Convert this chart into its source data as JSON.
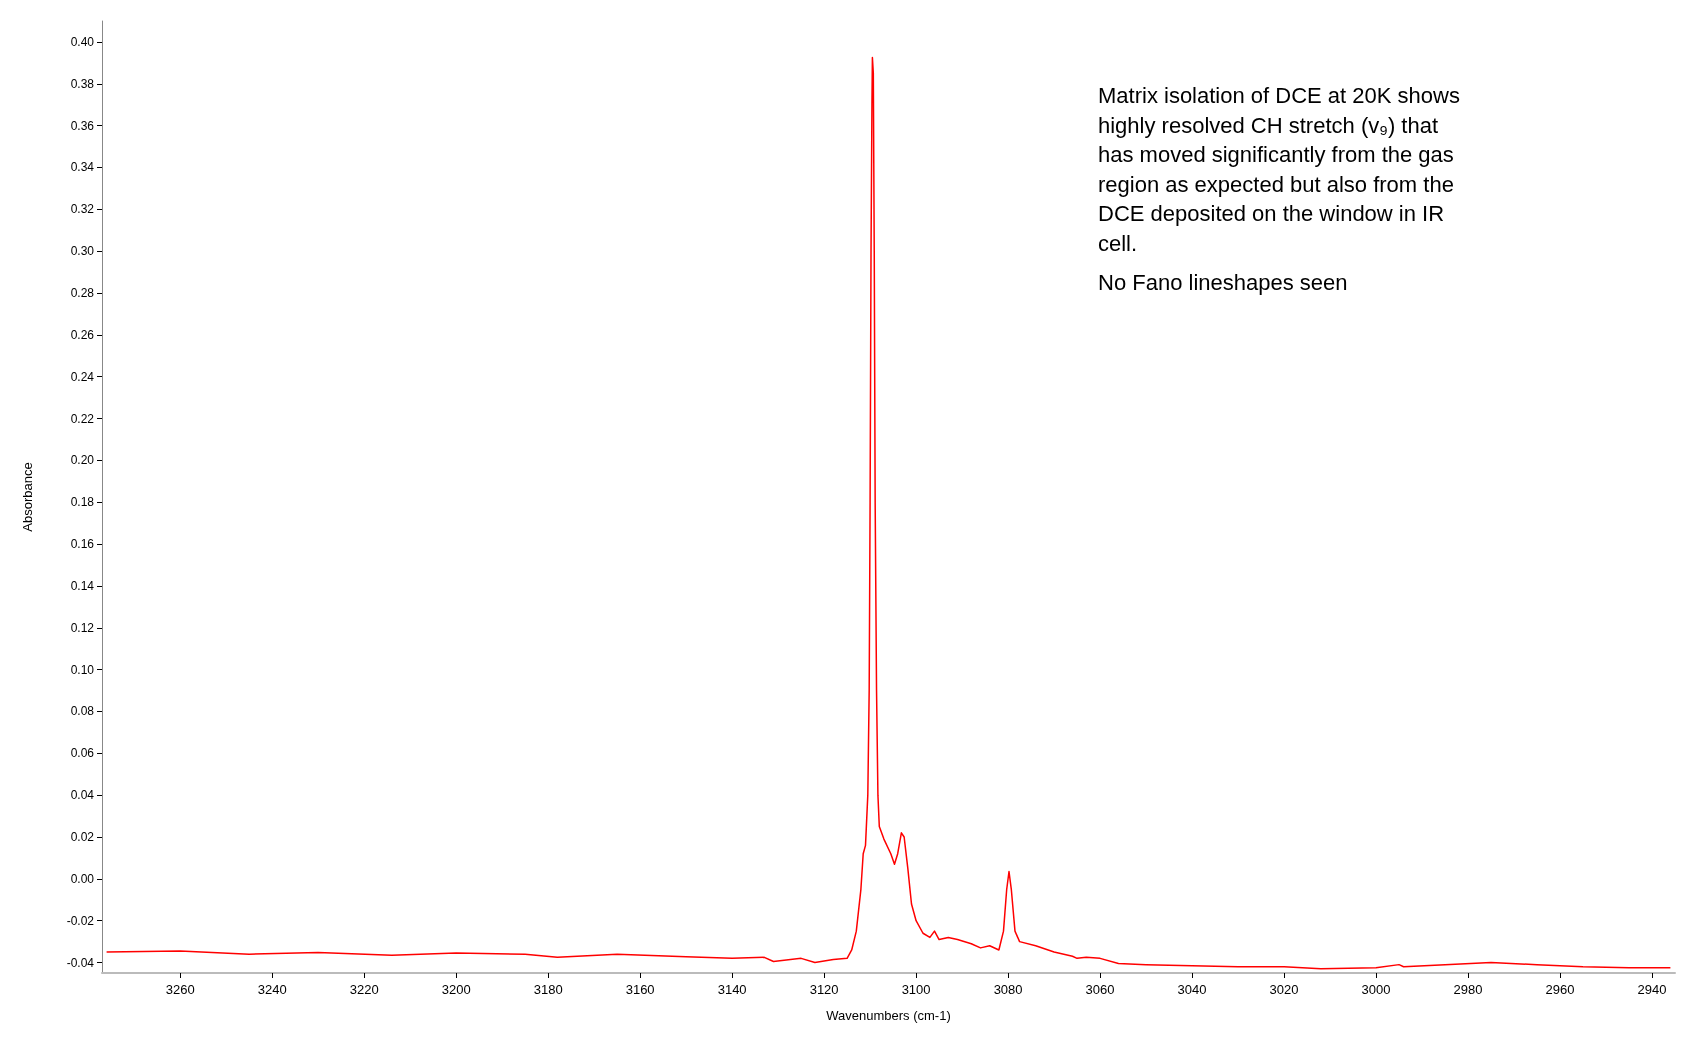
{
  "chart_data": {
    "type": "line",
    "xlabel": "Wavenumbers (cm-1)",
    "ylabel": "Absorbance",
    "annotations": [
      "Matrix isolation of DCE at 20K shows highly resolved CH stretch (v₉) that has moved significantly from the gas region as expected but also from the DCE deposited on the window in IR cell.",
      "No Fano lineshapes seen"
    ],
    "xlim": [
      3277,
      2935
    ],
    "xticks": [
      3260,
      3240,
      3220,
      3200,
      3180,
      3160,
      3140,
      3120,
      3100,
      3080,
      3060,
      3040,
      3020,
      3000,
      2980,
      2960,
      2940
    ],
    "ylim": [
      -0.045,
      0.41
    ],
    "yticks": [
      {
        "value": -0.04,
        "label": "-0.04"
      },
      {
        "value": -0.02,
        "label": "-0.02"
      },
      {
        "value": 0,
        "label": "0.00"
      },
      {
        "value": 0.02,
        "label": "0.02"
      },
      {
        "value": 0.04,
        "label": "0.04"
      },
      {
        "value": 0.06,
        "label": "0.06"
      },
      {
        "value": 0.08,
        "label": "0.08"
      },
      {
        "value": 0.1,
        "label": "0.10"
      },
      {
        "value": 0.12,
        "label": "0.12"
      },
      {
        "value": 0.14,
        "label": "0.14"
      },
      {
        "value": 0.16,
        "label": "0.16"
      },
      {
        "value": 0.18,
        "label": "0.18"
      },
      {
        "value": 0.2,
        "label": "0.20"
      },
      {
        "value": 0.22,
        "label": "0.22"
      },
      {
        "value": 0.24,
        "label": "0.24"
      },
      {
        "value": 0.26,
        "label": "0.26"
      },
      {
        "value": 0.28,
        "label": "0.28"
      },
      {
        "value": 0.3,
        "label": "0.30"
      },
      {
        "value": 0.32,
        "label": "0.32"
      },
      {
        "value": 0.34,
        "label": "0.34"
      },
      {
        "value": 0.36,
        "label": "0.36"
      },
      {
        "value": 0.38,
        "label": "0.38"
      },
      {
        "value": 0.4,
        "label": "0.40"
      }
    ],
    "grid": false,
    "marker": "none",
    "line_style": "solid",
    "series": [
      {
        "color": "#ff0000",
        "x": [
          3276,
          3260,
          3245,
          3230,
          3214,
          3200,
          3185,
          3178,
          3165,
          3150,
          3140,
          3133,
          3131,
          3125,
          3122,
          3118,
          3115,
          3114,
          3113,
          3112,
          3111.5,
          3111,
          3110.5,
          3110.2,
          3110,
          3109.8,
          3109.6,
          3109.5,
          3109.3,
          3109.1,
          3108.9,
          3108.6,
          3108.3,
          3108,
          3107,
          3105.5,
          3104.7,
          3104,
          3103.2,
          3102.6,
          3101.8,
          3101,
          3100,
          3098.5,
          3097,
          3096,
          3095,
          3093,
          3091,
          3088,
          3086,
          3084,
          3082,
          3081,
          3080.3,
          3079.8,
          3079.3,
          3078.5,
          3077.5,
          3074,
          3070,
          3066,
          3065,
          3063,
          3060,
          3056,
          3050,
          3040,
          3030,
          3020,
          3012,
          3000,
          2995,
          2994,
          2985,
          2975,
          2965,
          2955,
          2945,
          2936
        ],
        "values": [
          -0.035,
          -0.0345,
          -0.036,
          -0.0352,
          -0.0365,
          -0.0355,
          -0.036,
          -0.0375,
          -0.036,
          -0.0372,
          -0.038,
          -0.0375,
          -0.0395,
          -0.038,
          -0.04,
          -0.0385,
          -0.038,
          -0.034,
          -0.025,
          -0.005,
          0.012,
          0.016,
          0.04,
          0.09,
          0.18,
          0.3,
          0.37,
          0.3925,
          0.385,
          0.3,
          0.18,
          0.09,
          0.04,
          0.025,
          0.019,
          0.012,
          0.007,
          0.012,
          0.022,
          0.02,
          0.005,
          -0.012,
          -0.02,
          -0.026,
          -0.028,
          -0.025,
          -0.029,
          -0.028,
          -0.029,
          -0.031,
          -0.033,
          -0.032,
          -0.034,
          -0.025,
          -0.005,
          0.0035,
          -0.005,
          -0.025,
          -0.03,
          -0.032,
          -0.035,
          -0.037,
          -0.038,
          -0.0375,
          -0.038,
          -0.0405,
          -0.041,
          -0.0415,
          -0.042,
          -0.042,
          -0.043,
          -0.0425,
          -0.041,
          -0.042,
          -0.041,
          -0.04,
          -0.041,
          -0.042,
          -0.0425,
          -0.0425
        ]
      }
    ]
  }
}
